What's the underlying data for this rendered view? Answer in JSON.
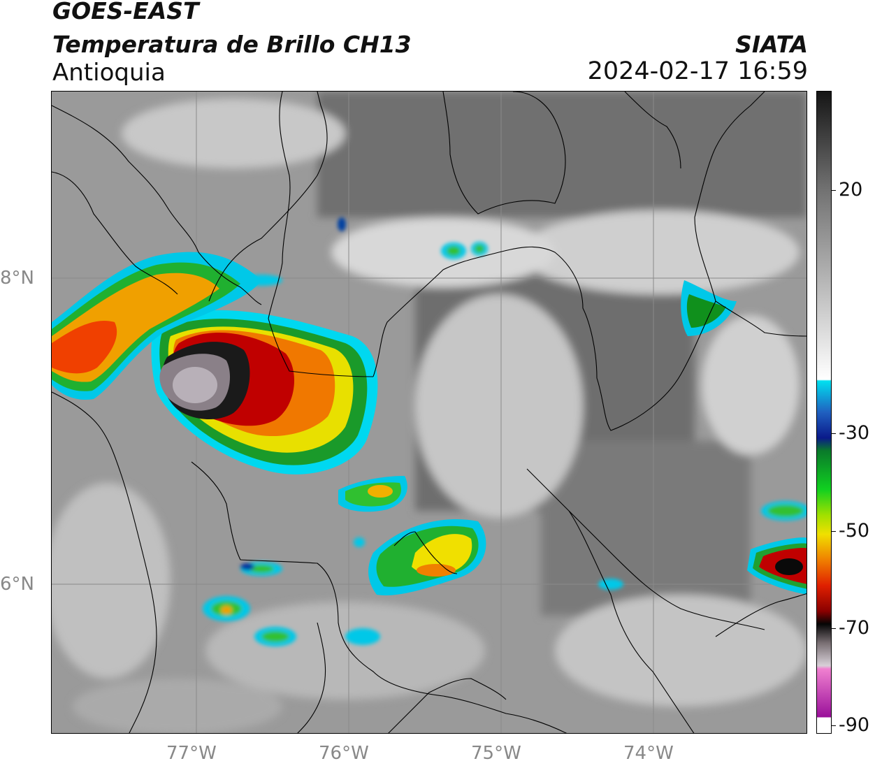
{
  "header": {
    "satellite": "GOES-EAST",
    "product": "Temperatura de Brillo CH13",
    "region": "Antioquia",
    "agency": "SIATA",
    "timestamp": "2024-02-17 16:59"
  },
  "axes": {
    "lat_labels": [
      "8°N",
      "6°N"
    ],
    "lon_labels": [
      "77°W",
      "76°W",
      "75°W",
      "74°W"
    ]
  },
  "colorbar": {
    "tick_labels": [
      "20",
      "-30",
      "-50",
      "-70",
      "-90"
    ],
    "colors": {
      "gray_top": "#151515",
      "gray_light": "#f0f0f0",
      "cyan": "#00e0f0",
      "blue": "#0a3a9a",
      "green": "#10c020",
      "yellow": "#f0e000",
      "orange": "#f08000",
      "red": "#d01000",
      "black": "#050505",
      "pink": "#f080d0",
      "purple": "#9a109a"
    }
  }
}
